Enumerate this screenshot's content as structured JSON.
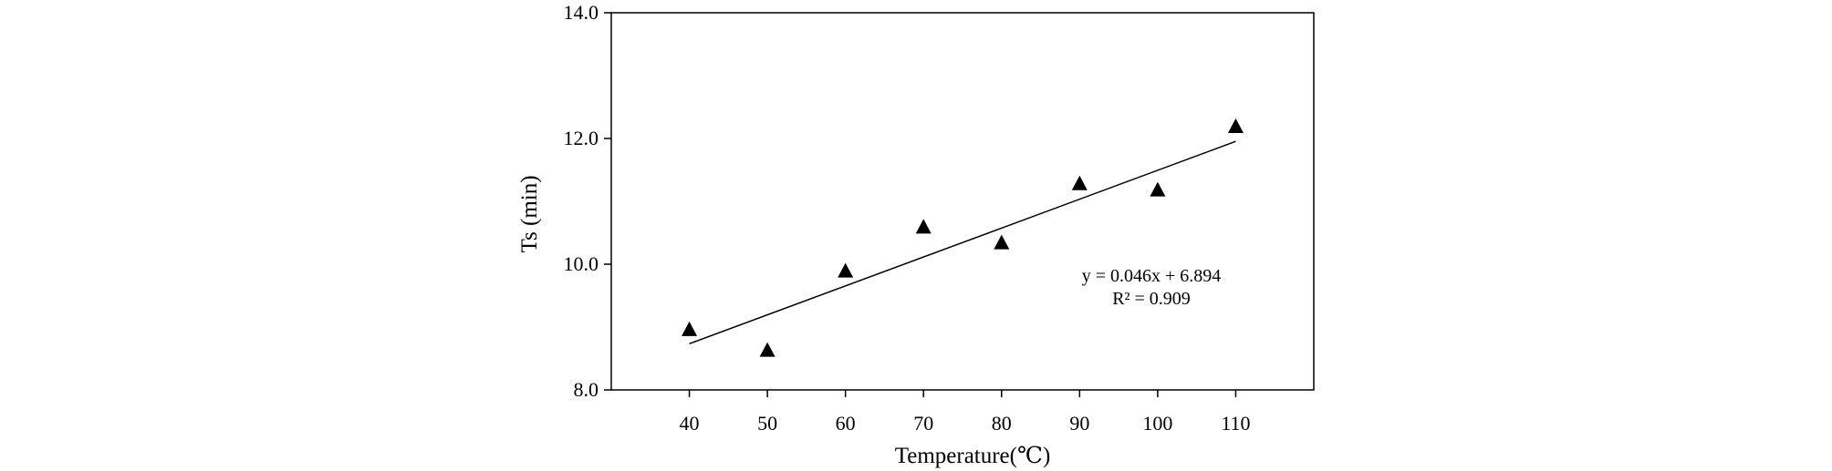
{
  "chart_data": {
    "type": "scatter",
    "xlabel": "Temperature(℃)",
    "ylabel": "Ts (min)",
    "xlim": [
      30,
      120
    ],
    "ylim": [
      8.0,
      14.0
    ],
    "x_ticks": [
      40,
      50,
      60,
      70,
      80,
      90,
      100,
      110
    ],
    "x_tick_labels": [
      "40",
      "50",
      "60",
      "70",
      "80",
      "90",
      "100",
      "110"
    ],
    "y_ticks": [
      8,
      10,
      12,
      14
    ],
    "y_tick_labels": [
      "8.0",
      "10.0",
      "12.0",
      "14.0"
    ],
    "marker": "triangle",
    "series": [
      {
        "name": "Ts",
        "x": [
          40,
          50,
          60,
          70,
          80,
          90,
          100,
          110
        ],
        "y": [
          8.95,
          8.62,
          9.88,
          10.58,
          10.33,
          11.27,
          11.17,
          12.18
        ]
      }
    ],
    "trendline": {
      "slope": 0.046,
      "intercept": 6.894,
      "x_range": [
        40,
        110
      ],
      "equation_label": "y = 0.046x + 6.894",
      "r2_label": "R² = 0.909"
    },
    "grid": false,
    "legend": "none",
    "colors": {
      "marker": "#000000",
      "line": "#000000",
      "axes": "#000000"
    }
  }
}
